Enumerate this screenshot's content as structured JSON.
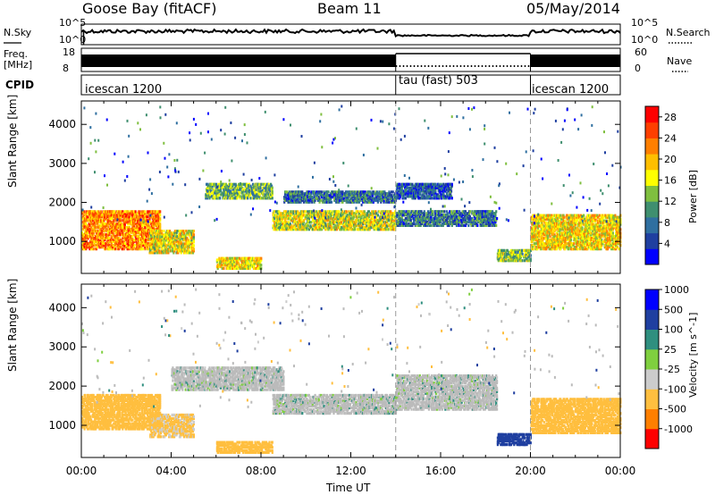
{
  "header": {
    "title": "Goose Bay (fitACF)",
    "beam": "Beam 11",
    "date": "05/May/2014"
  },
  "strip_panels": {
    "nsky": {
      "label": "N.Sky",
      "tick_top": "10^5",
      "tick_bottom": "10^0"
    },
    "nsearch": {
      "label": "N.Search",
      "tick_top": "10^5",
      "tick_bottom": "10^0"
    },
    "freq": {
      "label_line1": "Freq.",
      "label_line2": "[MHz]",
      "tick_top": "18",
      "tick_bottom": "8"
    },
    "nave": {
      "label": "Nave",
      "tick_top": "60",
      "tick_bottom": "0"
    },
    "cpid": {
      "label": "CPID",
      "segments": [
        {
          "text": "icescan 1200",
          "start": 0,
          "end": 14
        },
        {
          "text": "tau (fast) 503",
          "start": 14,
          "end": 20
        },
        {
          "text": "icescan 1200",
          "start": 20,
          "end": 24
        }
      ]
    }
  },
  "colors": {
    "power": [
      "#0000ff",
      "#1f3fa0",
      "#2f6fa0",
      "#3f8f6f",
      "#7fbf3f",
      "#ffff00",
      "#ffbf00",
      "#ff7f00",
      "#ff3f00",
      "#ff0000"
    ],
    "velocity": [
      "#ff0000",
      "#ff7f00",
      "#ffbf3f",
      "#cccccc",
      "#7fcf3f",
      "#2f8f7f",
      "#1f3fa0",
      "#0000ff"
    ],
    "ground_scatter": "#bbbbbb",
    "axis": "#000000"
  },
  "chart_data": [
    {
      "type": "heatmap",
      "title": "",
      "xlabel": "Time UT",
      "ylabel": "Slant Range [km]",
      "xlim_hours": [
        0,
        24
      ],
      "x_ticks": [
        "00:00",
        "04:00",
        "08:00",
        "12:00",
        "16:00",
        "20:00",
        "00:00"
      ],
      "ylim_km": [
        180,
        4600
      ],
      "y_ticks": [
        1000,
        2000,
        3000,
        4000
      ],
      "colorbar": {
        "label": "Power [dB]",
        "ticks": [
          "4",
          "8",
          "12",
          "16",
          "20",
          "24",
          "28"
        ],
        "range": [
          0,
          30
        ]
      },
      "echo_bands": [
        {
          "t_start": 0,
          "t_end": 3.5,
          "range_low": 800,
          "range_high": 1800,
          "value": 22
        },
        {
          "t_start": 3,
          "t_end": 5,
          "range_low": 700,
          "range_high": 1300,
          "value": 17
        },
        {
          "t_start": 5.5,
          "t_end": 8.5,
          "range_low": 2100,
          "range_high": 2500,
          "value": 12
        },
        {
          "t_start": 6,
          "t_end": 8,
          "range_low": 300,
          "range_high": 600,
          "value": 18
        },
        {
          "t_start": 8.5,
          "t_end": 14,
          "range_low": 1300,
          "range_high": 1800,
          "value": 16
        },
        {
          "t_start": 9,
          "t_end": 14,
          "range_low": 2000,
          "range_high": 2300,
          "value": 8
        },
        {
          "t_start": 14,
          "t_end": 16.5,
          "range_low": 2100,
          "range_high": 2500,
          "value": 6
        },
        {
          "t_start": 14,
          "t_end": 18.5,
          "range_low": 1400,
          "range_high": 1800,
          "value": 8
        },
        {
          "t_start": 18.5,
          "t_end": 20,
          "range_low": 500,
          "range_high": 800,
          "value": 14
        },
        {
          "t_start": 20,
          "t_end": 24,
          "range_low": 800,
          "range_high": 1700,
          "value": 18
        }
      ]
    },
    {
      "type": "heatmap",
      "title": "",
      "xlabel": "Time UT",
      "ylabel": "Slant Range [km]",
      "xlim_hours": [
        0,
        24
      ],
      "x_ticks": [
        "00:00",
        "04:00",
        "08:00",
        "12:00",
        "16:00",
        "20:00",
        "00:00"
      ],
      "ylim_km": [
        180,
        4600
      ],
      "y_ticks": [
        1000,
        2000,
        3000,
        4000
      ],
      "colorbar": {
        "label": "Velocity [m s^-1]",
        "ticks": [
          "-1000",
          "-500",
          "-100",
          "-25",
          "25",
          "100",
          "500",
          "1000"
        ],
        "range": [
          -1000,
          1000
        ]
      },
      "echo_bands": [
        {
          "t_start": 0,
          "t_end": 3.5,
          "range_low": 900,
          "range_high": 1800,
          "value": -300
        },
        {
          "t_start": 3,
          "t_end": 5,
          "range_low": 700,
          "range_high": 1300,
          "value": -150
        },
        {
          "t_start": 4,
          "t_end": 9,
          "range_low": 1900,
          "range_high": 2500,
          "value": 0
        },
        {
          "t_start": 6,
          "t_end": 8.5,
          "range_low": 300,
          "range_high": 600,
          "value": -400
        },
        {
          "t_start": 8.5,
          "t_end": 14,
          "range_low": 1300,
          "range_high": 1800,
          "value": 0
        },
        {
          "t_start": 14,
          "t_end": 18.5,
          "range_low": 1400,
          "range_high": 2300,
          "value": 0
        },
        {
          "t_start": 18.5,
          "t_end": 20,
          "range_low": 500,
          "range_high": 800,
          "value": 300
        },
        {
          "t_start": 20,
          "t_end": 24,
          "range_low": 800,
          "range_high": 1700,
          "value": -200
        }
      ]
    }
  ]
}
